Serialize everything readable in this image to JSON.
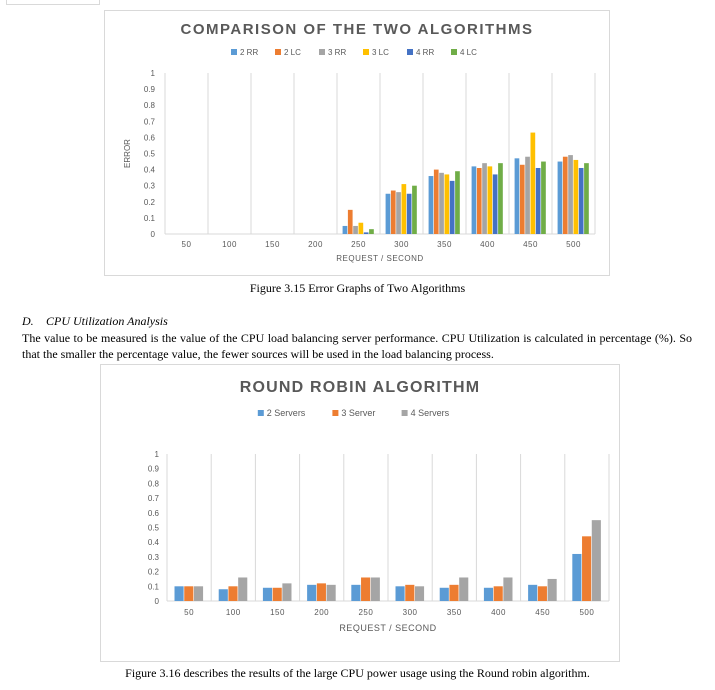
{
  "figure1": {
    "caption": "Figure 3.15 Error Graphs of Two Algorithms",
    "chart_data": {
      "type": "bar",
      "title": "COMPARISON OF THE TWO ALGORITHMS",
      "xlabel": "REQUEST / SECOND",
      "ylabel": "ERROR",
      "ylim": [
        0,
        1
      ],
      "yticks": [
        "0",
        "0.1",
        "0.2",
        "0.3",
        "0.4",
        "0.5",
        "0.6",
        "0.7",
        "0.8",
        "0.9",
        "1"
      ],
      "legend_position": "top",
      "categories": [
        "50",
        "100",
        "150",
        "200",
        "250",
        "300",
        "350",
        "400",
        "450",
        "500"
      ],
      "series": [
        {
          "name": "2 RR",
          "color": "#5b9bd5",
          "values": [
            0,
            0,
            0,
            0,
            0.05,
            0.25,
            0.36,
            0.42,
            0.47,
            0.45
          ]
        },
        {
          "name": "2 LC",
          "color": "#ed7d31",
          "values": [
            0,
            0,
            0,
            0,
            0.15,
            0.27,
            0.4,
            0.41,
            0.43,
            0.48
          ]
        },
        {
          "name": "3 RR",
          "color": "#a5a5a5",
          "values": [
            0,
            0,
            0,
            0,
            0.05,
            0.26,
            0.38,
            0.44,
            0.48,
            0.49
          ]
        },
        {
          "name": "3 LC",
          "color": "#ffc000",
          "values": [
            0,
            0,
            0,
            0,
            0.07,
            0.31,
            0.37,
            0.42,
            0.63,
            0.46
          ]
        },
        {
          "name": "4 RR",
          "color": "#4472c4",
          "values": [
            0,
            0,
            0,
            0,
            0.01,
            0.25,
            0.33,
            0.37,
            0.41,
            0.41
          ]
        },
        {
          "name": "4 LC",
          "color": "#70ad47",
          "values": [
            0,
            0,
            0,
            0,
            0.03,
            0.3,
            0.39,
            0.44,
            0.45,
            0.44
          ]
        }
      ]
    }
  },
  "section": {
    "number": "D.",
    "title": "CPU Utilization Analysis",
    "body": "The value to be measured is the value of the CPU load balancing server performance. CPU Utilization is calculated in percentage (%). So that the smaller the percentage value, the fewer sources will be used in the load balancing process."
  },
  "figure2": {
    "caption": "Figure 3.16 describes the results of the large CPU power usage using the Round robin algorithm.",
    "chart_data": {
      "type": "bar",
      "title": "ROUND ROBIN ALGORITHM",
      "xlabel": "REQUEST / SECOND",
      "ylabel": "",
      "ylim": [
        0,
        1
      ],
      "yticks": [
        "0",
        "0.1",
        "0.2",
        "0.3",
        "0.4",
        "0.5",
        "0.6",
        "0.7",
        "0.8",
        "0.9",
        "1"
      ],
      "legend_position": "top",
      "categories": [
        "50",
        "100",
        "150",
        "200",
        "250",
        "300",
        "350",
        "400",
        "450",
        "500"
      ],
      "series": [
        {
          "name": "2 Servers",
          "color": "#5b9bd5",
          "values": [
            0.1,
            0.08,
            0.09,
            0.11,
            0.11,
            0.1,
            0.09,
            0.09,
            0.11,
            0.32
          ]
        },
        {
          "name": "3 Server",
          "color": "#ed7d31",
          "values": [
            0.1,
            0.1,
            0.09,
            0.12,
            0.16,
            0.11,
            0.11,
            0.1,
            0.1,
            0.44
          ]
        },
        {
          "name": "4 Servers",
          "color": "#a5a5a5",
          "values": [
            0.1,
            0.16,
            0.12,
            0.11,
            0.16,
            0.1,
            0.16,
            0.16,
            0.15,
            0.55
          ]
        }
      ]
    }
  }
}
